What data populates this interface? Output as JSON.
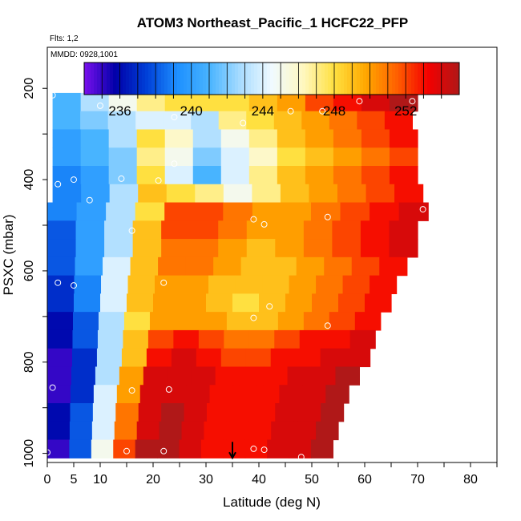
{
  "chart_data": {
    "type": "heatmap",
    "title": "ATOM3 Northeast_Pacific_1 HCFC22_PFP",
    "flights_label": "Flts: 1,2",
    "dates_label": "MMDD: 0928,1001",
    "xlabel": "Latitude (deg N)",
    "ylabel": "PSXC (mbar)",
    "xlim": [
      0,
      85
    ],
    "ylim": [
      1020,
      110
    ],
    "x_tick_values": [
      0,
      5,
      10,
      20,
      30,
      40,
      50,
      60,
      70,
      80
    ],
    "x_tick_labels": [
      "0",
      "5",
      "10",
      "20",
      "30",
      "40",
      "50",
      "60",
      "70",
      "80"
    ],
    "y_tick_values": [
      1000,
      800,
      600,
      400,
      200
    ],
    "y_tick_labels": [
      "1000",
      "800",
      "600",
      "400",
      "200"
    ],
    "colorbar": {
      "min": 234,
      "max": 255,
      "tick_values": [
        236,
        240,
        244,
        248,
        252
      ],
      "tick_labels": [
        "236",
        "240",
        "244",
        "248",
        "252"
      ],
      "colors": [
        "#7a10ee",
        "#0000a8",
        "#0040d8",
        "#1e90ff",
        "#48b4ff",
        "#a8dcff",
        "#f0faff",
        "#fff8c0",
        "#ffe040",
        "#ffa800",
        "#ff6000",
        "#f40000",
        "#b01818"
      ]
    },
    "row_pressures": [
      190,
      230,
      270,
      310,
      350,
      390,
      430,
      470,
      510,
      550,
      590,
      630,
      670,
      710,
      750,
      790,
      830,
      870,
      910,
      950,
      990
    ],
    "rows": [
      {
        "lat_start": 10,
        "lat_end": 20,
        "values": [
          241,
          242
        ]
      },
      {
        "lat_start": 1,
        "lat_end": 70,
        "values": [
          241,
          243,
          245,
          247,
          248,
          248,
          248,
          249,
          250,
          252,
          253,
          254,
          255
        ]
      },
      {
        "lat_start": 1,
        "lat_end": 69,
        "values": [
          241,
          242,
          243,
          244,
          244,
          243,
          247,
          248,
          249,
          250,
          251,
          252,
          253
        ]
      },
      {
        "lat_start": 1,
        "lat_end": 70,
        "values": [
          240,
          241,
          243,
          248,
          246,
          243,
          245,
          247,
          249,
          250,
          251,
          252,
          253
        ]
      },
      {
        "lat_start": 1,
        "lat_end": 70,
        "values": [
          240,
          241,
          242,
          247,
          245,
          242,
          244,
          246,
          248,
          249,
          250,
          251,
          252
        ]
      },
      {
        "lat_start": 1,
        "lat_end": 70,
        "values": [
          239,
          240,
          242,
          248,
          244,
          241,
          244,
          247,
          249,
          250,
          251,
          252,
          253
        ]
      },
      {
        "lat_start": 1,
        "lat_end": 71,
        "values": [
          239,
          240,
          243,
          249,
          248,
          247,
          245,
          247,
          249,
          250,
          251,
          252,
          253
        ]
      },
      {
        "lat_start": 0,
        "lat_end": 72,
        "values": [
          239,
          240,
          243,
          248,
          252,
          252,
          251,
          250,
          250,
          251,
          252,
          253,
          254
        ]
      },
      {
        "lat_start": 0,
        "lat_end": 70,
        "values": [
          238,
          240,
          243,
          249,
          252,
          252,
          251,
          250,
          250,
          251,
          252,
          253,
          254
        ]
      },
      {
        "lat_start": 0,
        "lat_end": 70,
        "values": [
          238,
          240,
          243,
          249,
          251,
          251,
          250,
          249,
          250,
          251,
          252,
          253,
          254
        ]
      },
      {
        "lat_start": 0,
        "lat_end": 68,
        "values": [
          238,
          240,
          244,
          249,
          251,
          251,
          250,
          249,
          249,
          250,
          251,
          252,
          253
        ]
      },
      {
        "lat_start": 0,
        "lat_end": 66,
        "values": [
          237,
          239,
          244,
          249,
          250,
          250,
          249,
          249,
          249,
          250,
          251,
          252,
          253
        ]
      },
      {
        "lat_start": 0,
        "lat_end": 65,
        "values": [
          237,
          239,
          244,
          249,
          250,
          250,
          249,
          248,
          249,
          250,
          251,
          252,
          253
        ]
      },
      {
        "lat_start": 0,
        "lat_end": 63,
        "values": [
          236,
          238,
          243,
          248,
          250,
          250,
          250,
          249,
          249,
          250,
          251,
          252,
          253
        ]
      },
      {
        "lat_start": 0,
        "lat_end": 62,
        "values": [
          236,
          238,
          243,
          249,
          252,
          253,
          252,
          251,
          251,
          252,
          253,
          253,
          254
        ]
      },
      {
        "lat_start": 0,
        "lat_end": 61,
        "values": [
          235,
          237,
          243,
          249,
          253,
          254,
          253,
          252,
          252,
          253,
          253,
          254,
          254
        ]
      },
      {
        "lat_start": 0,
        "lat_end": 59,
        "values": [
          235,
          237,
          243,
          250,
          254,
          254,
          254,
          253,
          253,
          253,
          254,
          254,
          255
        ]
      },
      {
        "lat_start": 0,
        "lat_end": 57,
        "values": [
          235,
          237,
          244,
          250,
          254,
          254,
          254,
          253,
          253,
          253,
          254,
          254,
          255
        ]
      },
      {
        "lat_start": 0,
        "lat_end": 56,
        "values": [
          236,
          238,
          244,
          251,
          254,
          255,
          254,
          253,
          253,
          253,
          254,
          254,
          255
        ]
      },
      {
        "lat_start": 0,
        "lat_end": 55,
        "values": [
          236,
          238,
          244,
          251,
          254,
          255,
          254,
          253,
          253,
          253,
          254,
          254,
          255
        ]
      },
      {
        "lat_start": 0,
        "lat_end": 54,
        "values": [
          235,
          238,
          245,
          252,
          255,
          255,
          254,
          253,
          253,
          253,
          254,
          254,
          255
        ]
      }
    ],
    "sample_points": [
      {
        "x": 1,
        "y": 215
      },
      {
        "x": 0,
        "y": 998
      },
      {
        "x": 1,
        "y": 856
      },
      {
        "x": 2,
        "y": 626
      },
      {
        "x": 5,
        "y": 632
      },
      {
        "x": 2,
        "y": 410
      },
      {
        "x": 5,
        "y": 400
      },
      {
        "x": 8,
        "y": 445
      },
      {
        "x": 10,
        "y": 200
      },
      {
        "x": 10,
        "y": 238
      },
      {
        "x": 14,
        "y": 398
      },
      {
        "x": 16,
        "y": 512
      },
      {
        "x": 16,
        "y": 862
      },
      {
        "x": 15,
        "y": 995
      },
      {
        "x": 20,
        "y": 200
      },
      {
        "x": 21,
        "y": 402
      },
      {
        "x": 24,
        "y": 365
      },
      {
        "x": 24,
        "y": 263
      },
      {
        "x": 22,
        "y": 626
      },
      {
        "x": 23,
        "y": 860
      },
      {
        "x": 22,
        "y": 995
      },
      {
        "x": 37,
        "y": 276
      },
      {
        "x": 39,
        "y": 487
      },
      {
        "x": 41,
        "y": 498
      },
      {
        "x": 42,
        "y": 678
      },
      {
        "x": 39,
        "y": 703
      },
      {
        "x": 39,
        "y": 990
      },
      {
        "x": 41,
        "y": 992
      },
      {
        "x": 46,
        "y": 250
      },
      {
        "x": 52,
        "y": 250
      },
      {
        "x": 53,
        "y": 482
      },
      {
        "x": 53,
        "y": 720
      },
      {
        "x": 48,
        "y": 1008
      },
      {
        "x": 59,
        "y": 228
      },
      {
        "x": 69,
        "y": 228
      },
      {
        "x": 71,
        "y": 465
      }
    ],
    "marker": {
      "x": 35,
      "y": 1010
    }
  }
}
